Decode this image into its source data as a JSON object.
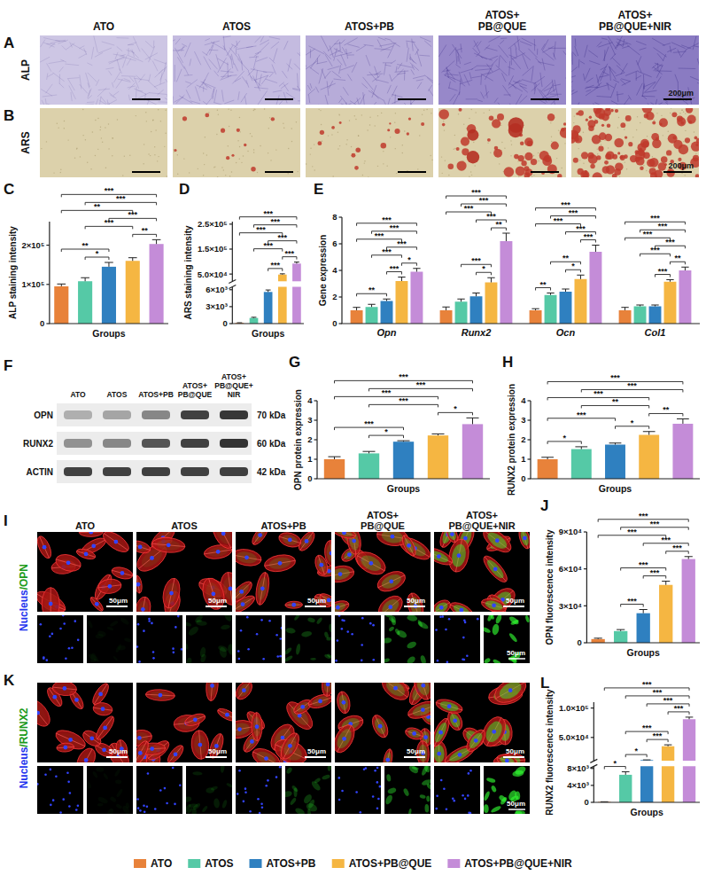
{
  "image_panels": {
    "A": {
      "panel": "A",
      "group_headers": [
        "ATO",
        "ATOS",
        "ATOS+PB",
        "ATOS+PB@QUE",
        "ATOS+PB@QUE+NIR"
      ],
      "row_label": "ALP",
      "scale_bar": "200μm"
    },
    "B": {
      "panel": "B",
      "row_label": "ARS",
      "scale_bar": "200μm"
    },
    "F": {
      "panel": "F",
      "group_headers": [
        "ATO",
        "ATOS",
        "ATOS+PB",
        "ATOS+PB@QUE",
        "ATOS+PB@QUE+NIR"
      ],
      "bands": [
        {
          "protein": "OPN",
          "size": "70 kDa"
        },
        {
          "protein": "RUNX2",
          "size": "60 kDa"
        },
        {
          "protein": "ACTIN",
          "size": "42 kDa"
        }
      ]
    },
    "I": {
      "panel": "I",
      "group_headers": [
        "ATO",
        "ATOS",
        "ATOS+PB",
        "ATOS+PB@QUE",
        "ATOS+PB@QUE+NIR"
      ],
      "row_label": [
        "Nucleus",
        "/OPN"
      ],
      "scale_bar": "50μm"
    },
    "K": {
      "panel": "K",
      "row_label": [
        "Nucleus",
        "/RUNX2"
      ],
      "scale_bar": "50μm"
    }
  },
  "chart_data": [
    {
      "type": "bar",
      "panel": "C",
      "y_label": "ALP staining intensity",
      "x_label": "Groups",
      "values": [
        95000,
        108000,
        145000,
        160000,
        203000
      ],
      "errors": [
        6000,
        9000,
        11000,
        8000,
        11000
      ],
      "colors": [
        "#E8823A",
        "#55C9A6",
        "#2F80C0",
        "#F5B642",
        "#C48CD8"
      ],
      "ylim": [
        0,
        260000
      ],
      "yticks": [
        0,
        {
          "value": 100000,
          "label": "1×10⁵"
        },
        {
          "value": 200000,
          "label": "2×10⁵"
        }
      ],
      "significance": [
        [
          0,
          4,
          "***"
        ],
        [
          1,
          4,
          "***"
        ],
        [
          0,
          3,
          "**"
        ],
        [
          2,
          4,
          "***"
        ],
        [
          1,
          3,
          "***"
        ],
        [
          3,
          4,
          "**"
        ],
        [
          0,
          2,
          "**"
        ],
        [
          1,
          2,
          "*"
        ]
      ]
    },
    {
      "type": "bar",
      "panel": "D",
      "y_label": "ARS staining intensity",
      "x_label": "Groups",
      "values": [
        120,
        1000,
        5600,
        48000,
        92000
      ],
      "errors": [
        30,
        120,
        350,
        3000,
        6000
      ],
      "colors": [
        "#E8823A",
        "#55C9A6",
        "#2F80C0",
        "#F5B642",
        "#C48CD8"
      ],
      "y_segments": [
        {
          "ylim": [
            0,
            6500
          ],
          "yticks": [
            0,
            {
              "value": 3000,
              "label": "3×10³"
            },
            {
              "value": 6000,
              "label": "6×10³"
            }
          ]
        },
        {
          "ylim": [
            20000,
            260000
          ],
          "yticks": [
            {
              "value": 50000,
              "label": "5.0×10⁴"
            },
            {
              "value": 150000,
              "label": "1.5×10⁵"
            },
            {
              "value": 250000,
              "label": "2.5×10⁵"
            }
          ]
        }
      ],
      "significance": [
        [
          0,
          4,
          "***"
        ],
        [
          1,
          4,
          "***"
        ],
        [
          2,
          4,
          "***"
        ],
        [
          0,
          3,
          "***"
        ],
        [
          1,
          3,
          "***"
        ],
        [
          3,
          4,
          "***"
        ],
        [
          2,
          3,
          "***"
        ]
      ]
    },
    {
      "type": "bar",
      "panel": "E",
      "y_label": "Gene expression",
      "legend": "bottom",
      "categories": [
        "Opn",
        "Runx2",
        "Ocn",
        "Col1"
      ],
      "series": [
        {
          "name": "ATO",
          "color": "#E8823A",
          "values": [
            1.0,
            1.0,
            1.0,
            1.0
          ],
          "errors": [
            0.22,
            0.25,
            0.12,
            0.22
          ]
        },
        {
          "name": "ATOS",
          "color": "#55C9A6",
          "values": [
            1.25,
            1.65,
            2.15,
            1.3
          ],
          "errors": [
            0.2,
            0.2,
            0.15,
            0.1
          ]
        },
        {
          "name": "ATOS+PB",
          "color": "#2F80C0",
          "values": [
            1.7,
            2.05,
            2.4,
            1.3
          ],
          "errors": [
            0.15,
            0.25,
            0.2,
            0.1
          ]
        },
        {
          "name": "ATOS+PB@QUE",
          "color": "#F5B642",
          "values": [
            3.2,
            3.1,
            3.35,
            3.15
          ],
          "errors": [
            0.3,
            0.35,
            0.3,
            0.15
          ]
        },
        {
          "name": "ATOS+PB@QUE+NIR",
          "color": "#C48CD8",
          "values": [
            3.9,
            6.2,
            5.4,
            4.0
          ],
          "errors": [
            0.25,
            0.6,
            0.5,
            0.25
          ]
        }
      ],
      "ylim": [
        0,
        8
      ],
      "yticks": [
        0,
        2,
        4,
        6,
        8
      ],
      "significance": [
        [
          [
            0,
            4,
            "***"
          ],
          [
            1,
            4,
            "***"
          ],
          [
            0,
            3,
            "***"
          ],
          [
            2,
            4,
            "***"
          ],
          [
            1,
            3,
            "***"
          ],
          [
            0,
            2,
            "**"
          ],
          [
            2,
            3,
            "***"
          ],
          [
            3,
            4,
            "*"
          ]
        ],
        [
          [
            0,
            4,
            "***"
          ],
          [
            1,
            4,
            "***"
          ],
          [
            0,
            3,
            "***"
          ],
          [
            2,
            4,
            "***"
          ],
          [
            1,
            3,
            "***"
          ],
          [
            2,
            3,
            "*"
          ],
          [
            3,
            4,
            "**"
          ]
        ],
        [
          [
            0,
            4,
            "***"
          ],
          [
            1,
            4,
            "***"
          ],
          [
            0,
            3,
            "***"
          ],
          [
            2,
            4,
            "***"
          ],
          [
            1,
            3,
            "**"
          ],
          [
            0,
            1,
            "**"
          ],
          [
            2,
            3,
            "*"
          ],
          [
            3,
            4,
            "***"
          ]
        ],
        [
          [
            0,
            4,
            "***"
          ],
          [
            1,
            4,
            "***"
          ],
          [
            0,
            3,
            "***"
          ],
          [
            2,
            4,
            "***"
          ],
          [
            1,
            3,
            "***"
          ],
          [
            2,
            3,
            "***"
          ],
          [
            3,
            4,
            "**"
          ]
        ]
      ]
    },
    {
      "type": "bar",
      "panel": "G",
      "y_label": "OPN protein expression",
      "x_label": "Groups",
      "values": [
        1.0,
        1.3,
        1.9,
        2.22,
        2.8
      ],
      "errors": [
        0.13,
        0.1,
        0.05,
        0.08,
        0.32
      ],
      "colors": [
        "#E8823A",
        "#55C9A6",
        "#2F80C0",
        "#F5B642",
        "#C48CD8"
      ],
      "ylim": [
        0,
        4
      ],
      "yticks": [
        0,
        1,
        2,
        3,
        4
      ],
      "significance": [
        [
          0,
          4,
          "***"
        ],
        [
          1,
          4,
          "***"
        ],
        [
          0,
          3,
          "***"
        ],
        [
          1,
          3,
          "***"
        ],
        [
          0,
          2,
          "***"
        ],
        [
          1,
          2,
          "*"
        ],
        [
          3,
          4,
          "*"
        ]
      ]
    },
    {
      "type": "bar",
      "panel": "H",
      "y_label": "RUNX2 protein expression",
      "x_label": "Groups",
      "values": [
        1.0,
        1.52,
        1.75,
        2.25,
        2.82
      ],
      "errors": [
        0.1,
        0.12,
        0.08,
        0.17,
        0.25
      ],
      "colors": [
        "#E8823A",
        "#55C9A6",
        "#2F80C0",
        "#F5B642",
        "#C48CD8"
      ],
      "ylim": [
        0,
        4
      ],
      "yticks": [
        0,
        1,
        2,
        3,
        4
      ],
      "significance": [
        [
          0,
          4,
          "***"
        ],
        [
          1,
          4,
          "***"
        ],
        [
          0,
          3,
          "***"
        ],
        [
          0,
          2,
          "***"
        ],
        [
          1,
          3,
          "**"
        ],
        [
          3,
          4,
          "**"
        ],
        [
          0,
          1,
          "*"
        ],
        [
          2,
          3,
          "*"
        ]
      ]
    },
    {
      "type": "bar",
      "panel": "J",
      "y_label": "OPN fluorescence intensity",
      "x_label": "Groups",
      "values": [
        3000,
        9500,
        24000,
        47000,
        68000
      ],
      "errors": [
        700,
        1200,
        3000,
        3000,
        2000
      ],
      "colors": [
        "#E8823A",
        "#55C9A6",
        "#2F80C0",
        "#F5B642",
        "#C48CD8"
      ],
      "ylim": [
        0,
        90000
      ],
      "yticks": [
        0,
        {
          "value": 30000,
          "label": "3×10⁴"
        },
        {
          "value": 60000,
          "label": "6×10⁴"
        },
        {
          "value": 90000,
          "label": "9×10⁴"
        }
      ],
      "significance": [
        [
          0,
          4,
          "***"
        ],
        [
          1,
          4,
          "***"
        ],
        [
          0,
          3,
          "***"
        ],
        [
          1,
          3,
          "***"
        ],
        [
          2,
          4,
          "***"
        ],
        [
          2,
          3,
          "***"
        ],
        [
          1,
          2,
          "***"
        ],
        [
          3,
          4,
          "***"
        ]
      ]
    },
    {
      "type": "bar",
      "panel": "L",
      "y_label": "RUNX2 fluorescence intensity",
      "x_label": "Groups",
      "values": [
        100,
        6500,
        11500,
        35000,
        81000
      ],
      "errors": [
        40,
        700,
        400,
        2500,
        3500
      ],
      "colors": [
        "#E8823A",
        "#55C9A6",
        "#2F80C0",
        "#F5B642",
        "#C48CD8"
      ],
      "y_segments": [
        {
          "ylim": [
            0,
            8500
          ],
          "yticks": [
            0,
            {
              "value": 4000,
              "label": "4×10³"
            },
            {
              "value": 8000,
              "label": "8×10³"
            }
          ]
        },
        {
          "ylim": [
            10000,
            110000
          ],
          "yticks": [
            {
              "value": 50000,
              "label": "5.0×10⁴"
            },
            {
              "value": 100000,
              "label": "1.0×10⁵"
            }
          ]
        }
      ],
      "significance": [
        [
          0,
          4,
          "***"
        ],
        [
          1,
          4,
          "***"
        ],
        [
          2,
          4,
          "***"
        ],
        [
          1,
          3,
          "***"
        ],
        [
          3,
          4,
          "***"
        ],
        [
          2,
          3,
          "***"
        ],
        [
          1,
          2,
          "*"
        ],
        [
          0,
          1,
          "*"
        ]
      ]
    }
  ]
}
